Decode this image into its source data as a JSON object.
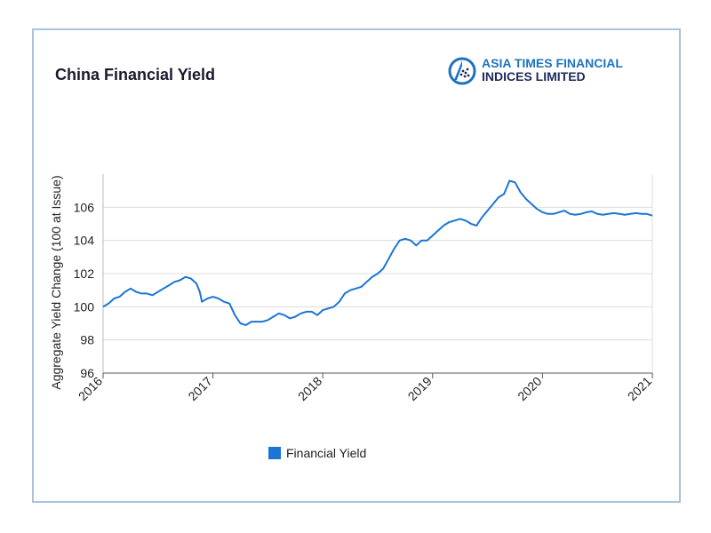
{
  "header": {
    "title": "China Financial Yield"
  },
  "logo": {
    "line1": "ASIA TIMES FINANCIAL",
    "line2": "INDICES LIMITED",
    "icon": "globe-icon",
    "colors": {
      "primary": "#1e73be",
      "dark": "#1e2a5a"
    }
  },
  "legend": {
    "label": "Financial Yield",
    "color": "#1976d2"
  },
  "chart_data": {
    "type": "line",
    "title": "China Financial Yield",
    "xlabel": "",
    "ylabel": "Aggregate Yield Change (100 at Issue)",
    "xlim": [
      2016,
      2021
    ],
    "ylim": [
      96,
      108
    ],
    "x_ticks": [
      "2016",
      "2017",
      "2018",
      "2019",
      "2020",
      "2021"
    ],
    "y_ticks": [
      "96",
      "98",
      "100",
      "102",
      "104",
      "106"
    ],
    "grid": true,
    "legend_position": "bottom",
    "series": [
      {
        "name": "Financial Yield",
        "color": "#1976d2",
        "x": [
          2016.0,
          2016.05,
          2016.1,
          2016.15,
          2016.2,
          2016.25,
          2016.3,
          2016.35,
          2016.4,
          2016.45,
          2016.5,
          2016.55,
          2016.6,
          2016.65,
          2016.7,
          2016.75,
          2016.8,
          2016.85,
          2016.88,
          2016.9,
          2016.95,
          2017.0,
          2017.05,
          2017.1,
          2017.15,
          2017.2,
          2017.25,
          2017.3,
          2017.35,
          2017.4,
          2017.45,
          2017.5,
          2017.55,
          2017.6,
          2017.65,
          2017.7,
          2017.75,
          2017.8,
          2017.85,
          2017.9,
          2017.95,
          2018.0,
          2018.05,
          2018.1,
          2018.15,
          2018.2,
          2018.25,
          2018.3,
          2018.35,
          2018.4,
          2018.45,
          2018.5,
          2018.55,
          2018.6,
          2018.65,
          2018.7,
          2018.75,
          2018.8,
          2018.85,
          2018.9,
          2018.95,
          2019.0,
          2019.05,
          2019.1,
          2019.15,
          2019.2,
          2019.25,
          2019.3,
          2019.35,
          2019.4,
          2019.45,
          2019.5,
          2019.55,
          2019.6,
          2019.65,
          2019.7,
          2019.75,
          2019.8,
          2019.85,
          2019.9,
          2019.95,
          2020.0,
          2020.05,
          2020.1,
          2020.15,
          2020.2,
          2020.25,
          2020.3,
          2020.35,
          2020.4,
          2020.45,
          2020.5,
          2020.55,
          2020.6,
          2020.65,
          2020.7,
          2020.75,
          2020.8,
          2020.85,
          2020.9,
          2020.95,
          2021.0
        ],
        "values": [
          100.0,
          100.2,
          100.5,
          100.6,
          100.9,
          101.1,
          100.9,
          100.8,
          100.8,
          100.7,
          100.9,
          101.1,
          101.3,
          101.5,
          101.6,
          101.8,
          101.7,
          101.4,
          100.9,
          100.3,
          100.5,
          100.6,
          100.5,
          100.3,
          100.2,
          99.5,
          99.0,
          98.9,
          99.1,
          99.1,
          99.1,
          99.2,
          99.4,
          99.6,
          99.5,
          99.3,
          99.4,
          99.6,
          99.7,
          99.7,
          99.5,
          99.8,
          99.9,
          100.0,
          100.3,
          100.8,
          101.0,
          101.1,
          101.2,
          101.5,
          101.8,
          102.0,
          102.3,
          102.9,
          103.5,
          104.0,
          104.1,
          104.0,
          103.7,
          104.0,
          104.0,
          104.3,
          104.6,
          104.9,
          105.1,
          105.2,
          105.3,
          105.2,
          105.0,
          104.9,
          105.4,
          105.8,
          106.2,
          106.6,
          106.8,
          107.6,
          107.5,
          106.9,
          106.5,
          106.2,
          105.9,
          105.7,
          105.6,
          105.6,
          105.7,
          105.8,
          105.6,
          105.55,
          105.6,
          105.7,
          105.75,
          105.6,
          105.55,
          105.6,
          105.65,
          105.6,
          105.55,
          105.6,
          105.65,
          105.6,
          105.6,
          105.5
        ]
      }
    ]
  }
}
